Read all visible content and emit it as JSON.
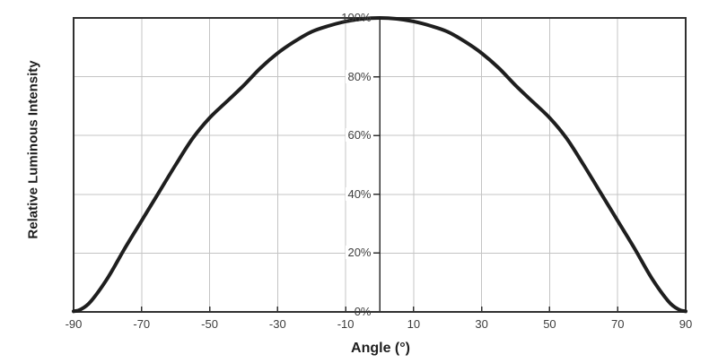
{
  "chart_data": {
    "type": "line",
    "title": "",
    "xlabel": "Angle (°)",
    "ylabel": "Relative Luminous Intensity",
    "xlim": [
      -90,
      90
    ],
    "ylim": [
      0,
      100
    ],
    "x_ticks": [
      -90,
      -70,
      -50,
      -30,
      -10,
      10,
      30,
      50,
      70,
      90
    ],
    "y_ticks": [
      "0%",
      "20%",
      "40%",
      "60%",
      "80%",
      "100%"
    ],
    "y_tick_values": [
      0,
      20,
      40,
      60,
      80,
      100
    ],
    "grid": true,
    "legend": "none",
    "colors": {
      "curve": "#1e1e1e",
      "grid": "#c4c4c4",
      "axis": "#303030",
      "tick_text": "#3d3d3d",
      "title_text": "#1f1f1f",
      "background": "#ffffff"
    },
    "series": [
      {
        "name": "relative-luminous-intensity",
        "x": [
          -90,
          -88,
          -85,
          -80,
          -75,
          -70,
          -65,
          -60,
          -55,
          -50,
          -45,
          -40,
          -35,
          -30,
          -25,
          -20,
          -15,
          -10,
          -5,
          0,
          5,
          10,
          15,
          20,
          25,
          30,
          35,
          40,
          45,
          50,
          55,
          60,
          65,
          70,
          75,
          80,
          85,
          88,
          90
        ],
        "y": [
          0.2,
          0.8,
          3.5,
          11.5,
          21.5,
          31,
          40.5,
          50,
          59,
          66,
          71.5,
          77,
          83,
          88,
          92,
          95.3,
          97.3,
          98.8,
          99.7,
          100,
          99.7,
          98.8,
          97.3,
          95.3,
          92,
          88,
          83,
          77,
          71.5,
          66,
          59,
          50,
          40.5,
          31,
          21.5,
          11.5,
          3.5,
          0.8,
          0.2
        ]
      }
    ]
  }
}
